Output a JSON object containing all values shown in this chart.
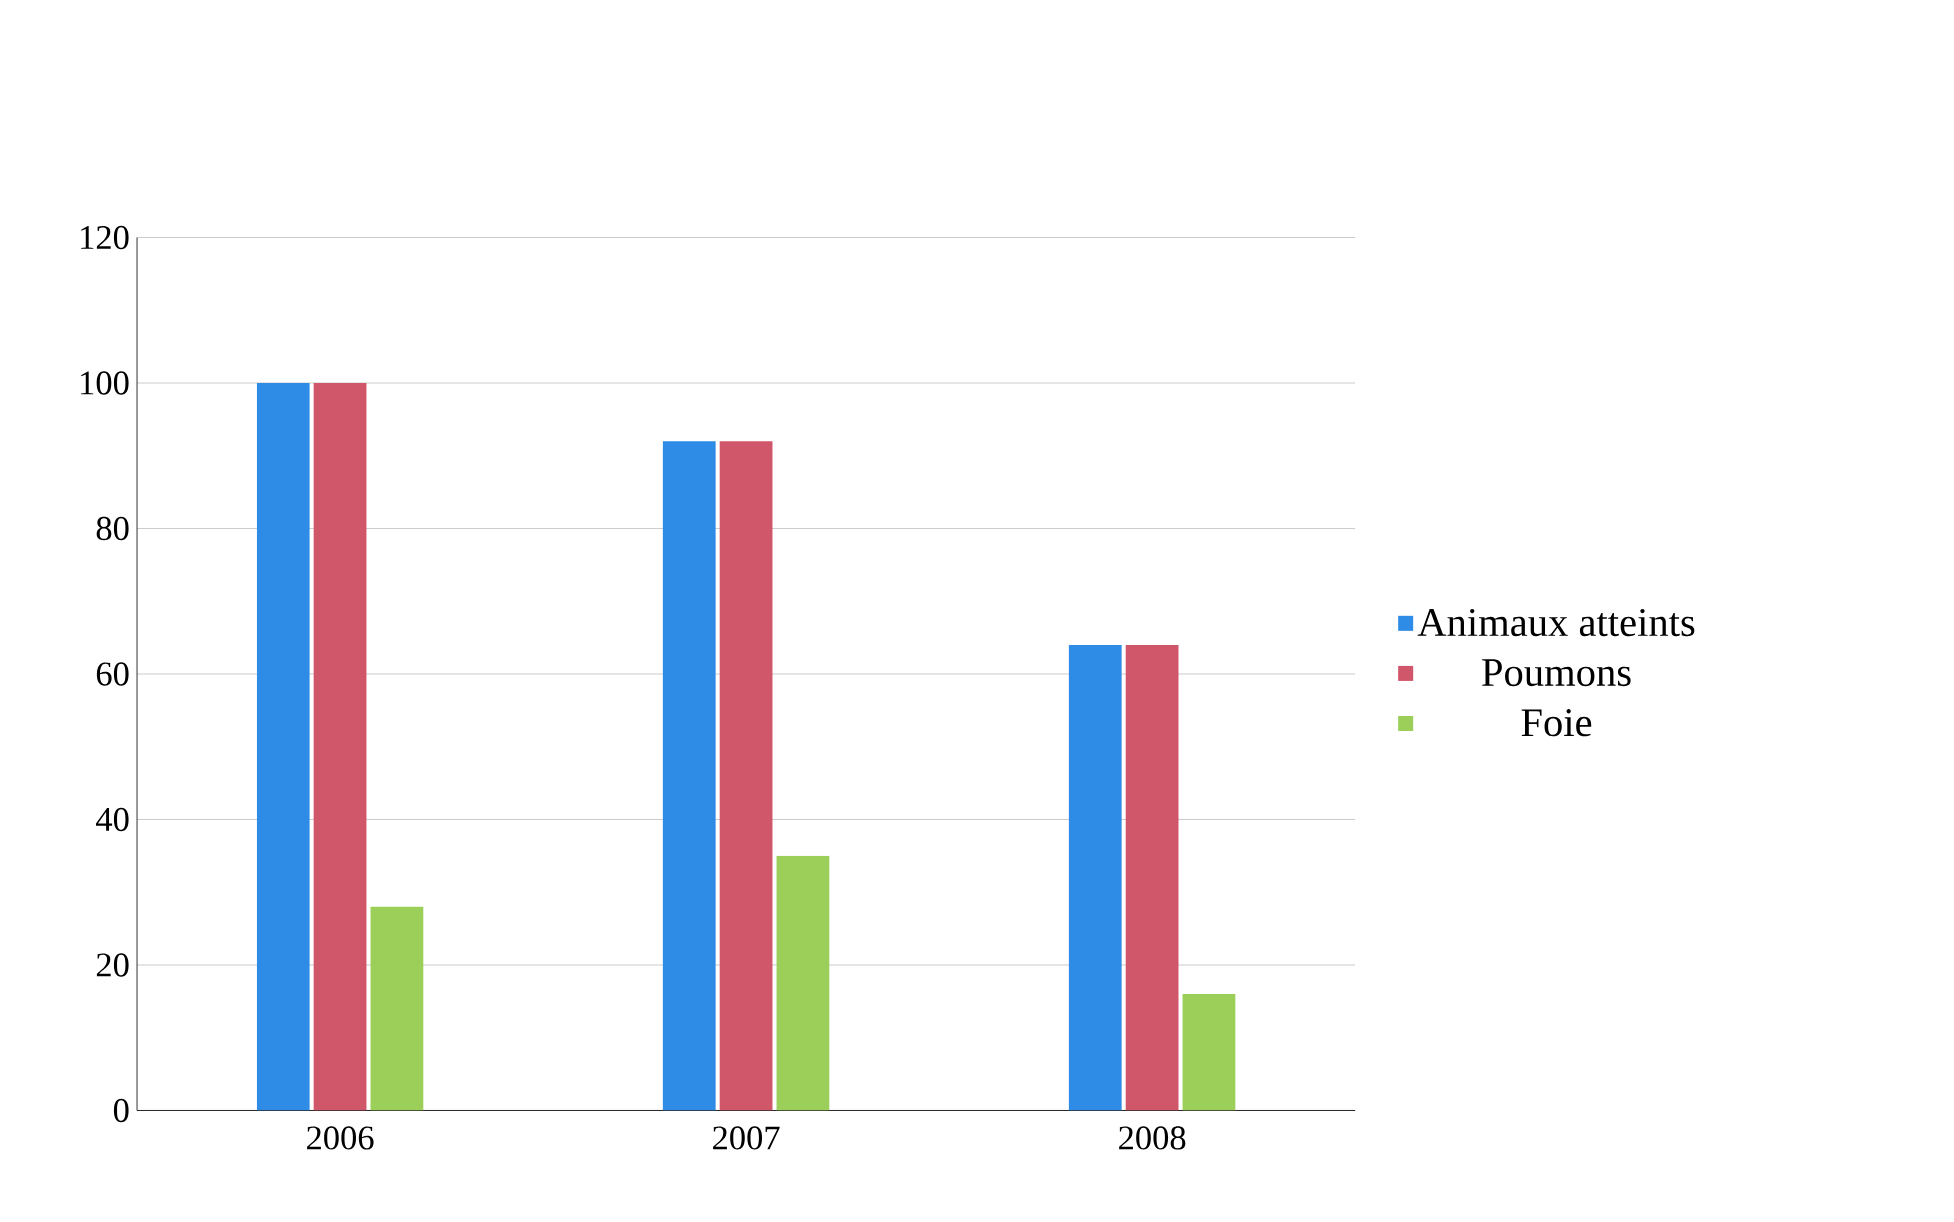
{
  "chart_data": {
    "type": "bar",
    "categories": [
      "2006",
      "2007",
      "2008"
    ],
    "series": [
      {
        "name": "Animaux atteints",
        "color": "#2e8be6",
        "values": [
          100,
          92,
          64
        ]
      },
      {
        "name": "Poumons",
        "color": "#d0566a",
        "values": [
          100,
          92,
          64
        ]
      },
      {
        "name": "Foie",
        "color": "#9ccf5a",
        "values": [
          28,
          35,
          16
        ]
      }
    ],
    "ylim": [
      0,
      120
    ],
    "yticks": [
      0,
      20,
      40,
      60,
      80,
      100,
      120
    ],
    "grid": "y",
    "legend": "right"
  }
}
